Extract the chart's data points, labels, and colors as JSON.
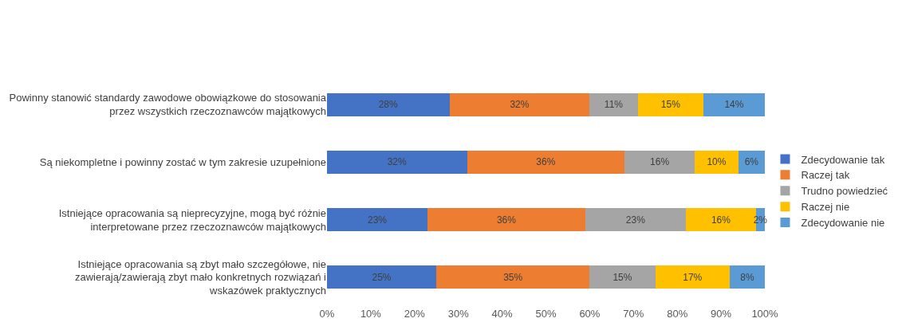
{
  "chart_data": {
    "type": "bar",
    "orientation": "horizontal",
    "stacked": true,
    "categories": [
      "Powinny stanowić standardy zawodowe obowiązkowe do stosowania przez wszystkich rzeczoznawców majątkowych",
      "Są niekompletne i powinny zostać w tym zakresie uzupełnione",
      "Istniejące opracowania są nieprecyzyjne, mogą być różnie interpretowane przez rzeczoznawców majątkowych",
      "Istniejące opracowania są zbyt mało szczegółowe, nie zawierają/zawierają zbyt mało konkretnych rozwiązań i wskazówek praktycznych"
    ],
    "series": [
      {
        "name": "Zdecydowanie tak",
        "color": "#4472c4",
        "values": [
          28,
          32,
          23,
          25
        ],
        "value_labels": [
          "28%",
          "32%",
          "23%",
          "25%"
        ]
      },
      {
        "name": "Raczej tak",
        "color": "#ed7d31",
        "values": [
          32,
          36,
          36,
          35
        ],
        "value_labels": [
          "32%",
          "36%",
          "36%",
          "35%"
        ]
      },
      {
        "name": "Trudno powiedzieć",
        "color": "#a5a5a5",
        "values": [
          11,
          16,
          23,
          15
        ],
        "value_labels": [
          "11%",
          "16%",
          "23%",
          "15%"
        ]
      },
      {
        "name": "Raczej nie",
        "color": "#ffc000",
        "values": [
          15,
          10,
          16,
          17
        ],
        "value_labels": [
          "15%",
          "10%",
          "16%",
          "17%"
        ]
      },
      {
        "name": "Zdecydowanie nie",
        "color": "#5b9bd5",
        "values": [
          14,
          6,
          2,
          8
        ],
        "value_labels": [
          "14%",
          "6%",
          "2%",
          "8%"
        ]
      }
    ],
    "xlim": [
      0,
      100
    ],
    "xticks": [
      {
        "value": 0,
        "label": "0%"
      },
      {
        "value": 10,
        "label": "10%"
      },
      {
        "value": 20,
        "label": "20%"
      },
      {
        "value": 30,
        "label": "30%"
      },
      {
        "value": 40,
        "label": "40%"
      },
      {
        "value": 50,
        "label": "50%"
      },
      {
        "value": 60,
        "label": "60%"
      },
      {
        "value": 70,
        "label": "70%"
      },
      {
        "value": 80,
        "label": "80%"
      },
      {
        "value": 90,
        "label": "90%"
      },
      {
        "value": 100,
        "label": "100%"
      }
    ],
    "legend": "right"
  }
}
